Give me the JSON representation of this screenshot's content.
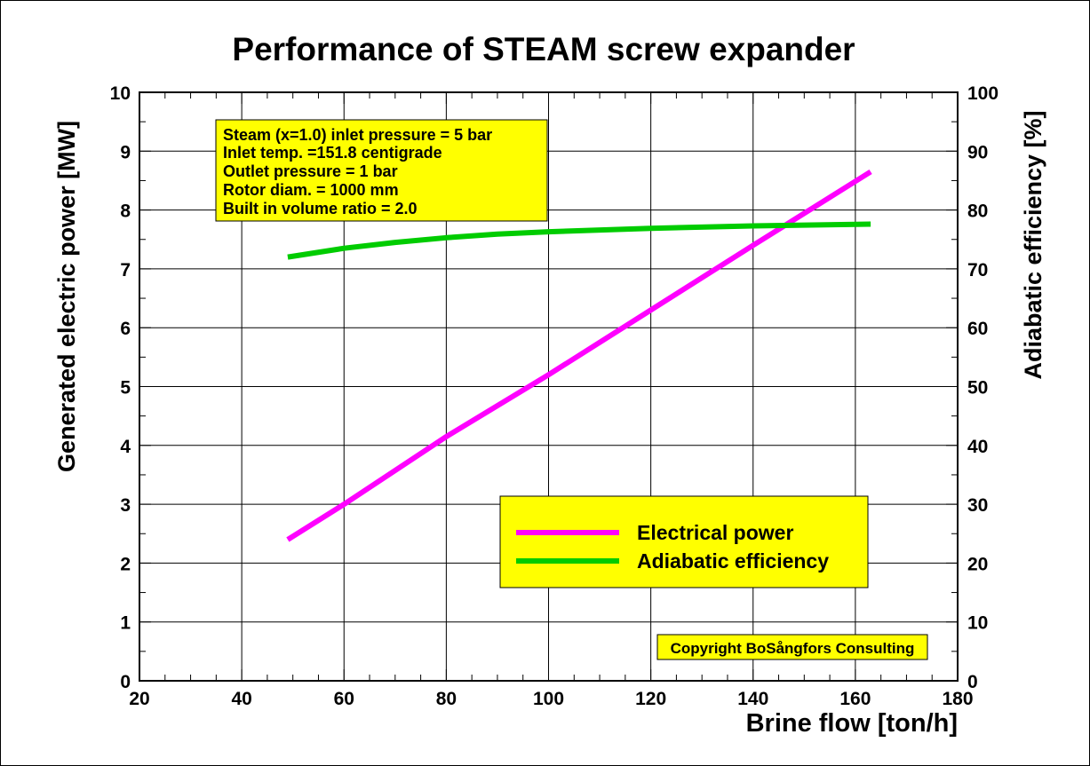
{
  "chart_data": {
    "type": "line",
    "title": "Performance of STEAM screw expander",
    "xlabel": "Brine flow [ton/h]",
    "ylabel_left": "Generated electric power [MW]",
    "ylabel_right": "Adiabatic efficiency [%]",
    "xlim": [
      20,
      180
    ],
    "ylim_left": [
      0,
      10
    ],
    "ylim_right": [
      0,
      100
    ],
    "x_ticks": [
      "20",
      "40",
      "60",
      "80",
      "100",
      "120",
      "140",
      "160",
      "180"
    ],
    "y_ticks_left": [
      "0",
      "1",
      "2",
      "3",
      "4",
      "5",
      "6",
      "7",
      "8",
      "9",
      "10"
    ],
    "y_ticks_right": [
      "0",
      "10",
      "20",
      "30",
      "40",
      "50",
      "60",
      "70",
      "80",
      "90",
      "100"
    ],
    "grid": true,
    "legend_position": "bottom-right",
    "series": [
      {
        "name": "Electrical power",
        "axis": "left",
        "color": "#ff00ff",
        "x": [
          49,
          60,
          80,
          100,
          120,
          140,
          163
        ],
        "y": [
          2.4,
          3.0,
          4.15,
          5.2,
          6.3,
          7.4,
          8.65
        ]
      },
      {
        "name": "Adiabatic efficiency",
        "axis": "right",
        "color": "#00cc00",
        "x": [
          49,
          60,
          70,
          80,
          90,
          100,
          120,
          140,
          163
        ],
        "y": [
          72.0,
          73.5,
          74.5,
          75.3,
          75.9,
          76.3,
          76.9,
          77.3,
          77.6
        ]
      }
    ],
    "info_box": [
      "Steam (x=1.0) inlet pressure = 5 bar",
      "Inlet temp. =151.8 centigrade",
      "Outlet pressure = 1 bar",
      "Rotor diam. = 1000 mm",
      "Built in volume ratio = 2.0"
    ],
    "copyright": "Copyright BoSångfors Consulting",
    "box_fill_color": "#ffff00"
  }
}
